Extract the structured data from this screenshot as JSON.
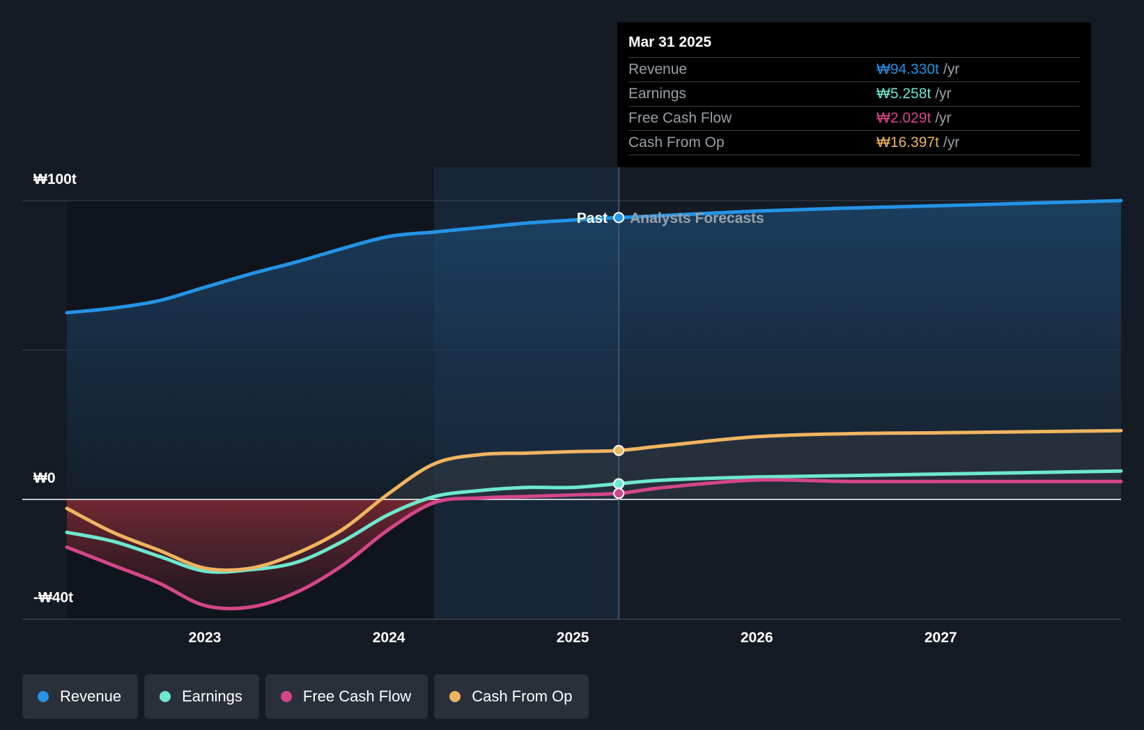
{
  "chart_data": {
    "type": "line",
    "x_axis": {
      "ticks": [
        "2023",
        "2024",
        "2025",
        "2026",
        "2027"
      ],
      "range": [
        2022.25,
        2027.98
      ]
    },
    "y_axis": {
      "labels": [
        "₩100t",
        "₩0",
        "-₩40t"
      ],
      "range": [
        -40,
        100
      ]
    },
    "divider": {
      "x": 2025.25,
      "past_label": "Past",
      "forecast_label": "Analysts Forecasts"
    },
    "series": [
      {
        "name": "Revenue",
        "color": "#2394e6",
        "points": [
          [
            2022.25,
            62.5
          ],
          [
            2022.5,
            64
          ],
          [
            2022.75,
            66.5
          ],
          [
            2023.0,
            71
          ],
          [
            2023.25,
            75.5
          ],
          [
            2023.5,
            79.5
          ],
          [
            2023.75,
            84
          ],
          [
            2024.0,
            88
          ],
          [
            2024.25,
            89.5
          ],
          [
            2024.5,
            91
          ],
          [
            2024.75,
            92.5
          ],
          [
            2025.0,
            93.5
          ],
          [
            2025.25,
            94.33
          ],
          [
            2025.5,
            95
          ],
          [
            2026.0,
            96.5
          ],
          [
            2026.5,
            97.5
          ],
          [
            2027.0,
            98.3
          ],
          [
            2027.98,
            100
          ]
        ]
      },
      {
        "name": "Earnings",
        "color": "#6ee7cf",
        "points": [
          [
            2022.25,
            -11
          ],
          [
            2022.5,
            -14
          ],
          [
            2022.75,
            -19
          ],
          [
            2023.0,
            -24
          ],
          [
            2023.25,
            -23.5
          ],
          [
            2023.5,
            -21
          ],
          [
            2023.75,
            -14
          ],
          [
            2024.0,
            -5
          ],
          [
            2024.25,
            1
          ],
          [
            2024.5,
            3
          ],
          [
            2024.75,
            4
          ],
          [
            2025.0,
            4
          ],
          [
            2025.25,
            5.258
          ],
          [
            2025.5,
            6.5
          ],
          [
            2026.0,
            7.5
          ],
          [
            2026.5,
            8
          ],
          [
            2027.0,
            8.5
          ],
          [
            2027.98,
            9.5
          ]
        ]
      },
      {
        "name": "Free Cash Flow",
        "color": "#d4468a",
        "points": [
          [
            2022.25,
            -16
          ],
          [
            2022.5,
            -22
          ],
          [
            2022.75,
            -28
          ],
          [
            2023.0,
            -35.5
          ],
          [
            2023.25,
            -36
          ],
          [
            2023.5,
            -31
          ],
          [
            2023.75,
            -22
          ],
          [
            2024.0,
            -10
          ],
          [
            2024.25,
            -1
          ],
          [
            2024.5,
            0.5
          ],
          [
            2024.75,
            1
          ],
          [
            2025.0,
            1.5
          ],
          [
            2025.25,
            2.029
          ],
          [
            2025.5,
            4
          ],
          [
            2026.0,
            6.5
          ],
          [
            2026.5,
            6
          ],
          [
            2027.0,
            6
          ],
          [
            2027.98,
            6
          ]
        ]
      },
      {
        "name": "Cash From Op",
        "color": "#f0b460",
        "points": [
          [
            2022.25,
            -3
          ],
          [
            2022.5,
            -11
          ],
          [
            2022.75,
            -17
          ],
          [
            2023.0,
            -23
          ],
          [
            2023.25,
            -23
          ],
          [
            2023.5,
            -18
          ],
          [
            2023.75,
            -10
          ],
          [
            2024.0,
            2
          ],
          [
            2024.25,
            12
          ],
          [
            2024.5,
            15
          ],
          [
            2024.75,
            15.5
          ],
          [
            2025.0,
            16
          ],
          [
            2025.25,
            16.397
          ],
          [
            2025.5,
            18
          ],
          [
            2026.0,
            21
          ],
          [
            2026.5,
            22
          ],
          [
            2027.0,
            22.3
          ],
          [
            2027.98,
            23
          ]
        ]
      }
    ],
    "tooltip": {
      "date": "Mar 31 2025",
      "rows": [
        {
          "label": "Revenue",
          "value": "₩94.330t",
          "unit": "/yr",
          "color": "#2394e6"
        },
        {
          "label": "Earnings",
          "value": "₩5.258t",
          "unit": "/yr",
          "color": "#6ee7cf"
        },
        {
          "label": "Free Cash Flow",
          "value": "₩2.029t",
          "unit": "/yr",
          "color": "#d4468a"
        },
        {
          "label": "Cash From Op",
          "value": "₩16.397t",
          "unit": "/yr",
          "color": "#f0b460"
        }
      ]
    },
    "legend": [
      {
        "name": "Revenue",
        "color": "#2394e6"
      },
      {
        "name": "Earnings",
        "color": "#6ee7cf"
      },
      {
        "name": "Free Cash Flow",
        "color": "#d4468a"
      },
      {
        "name": "Cash From Op",
        "color": "#f0b460"
      }
    ],
    "colors": {
      "background": "#151b24",
      "grid": "#3a4250",
      "negative_fill": "#8a2a34",
      "highlight_band": "#1a3550"
    }
  }
}
